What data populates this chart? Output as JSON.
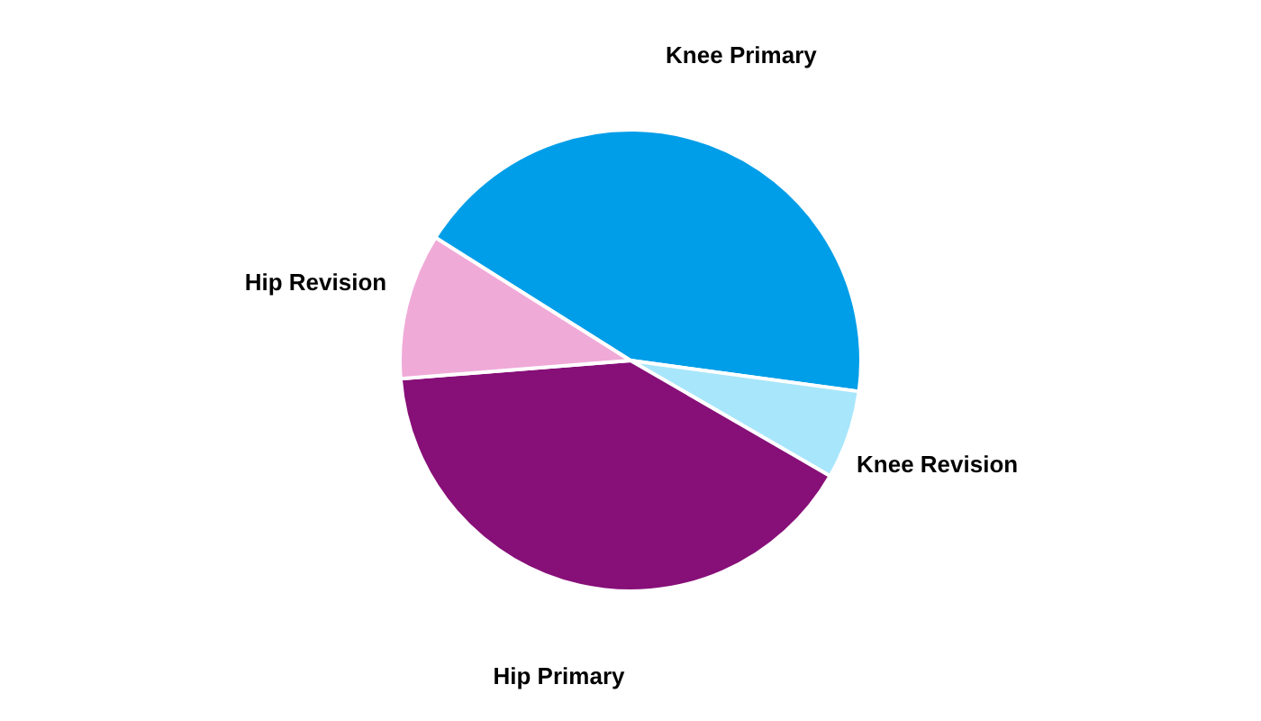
{
  "chart_data": {
    "type": "pie",
    "categories": [
      "Knee Primary",
      "Knee Revision",
      "Hip Primary",
      "Hip Revision"
    ],
    "values": [
      43.2,
      6.2,
      40.4,
      10.2
    ],
    "colors": [
      "#009ee8",
      "#a8e6fb",
      "#870f78",
      "#f0aad8"
    ]
  }
}
